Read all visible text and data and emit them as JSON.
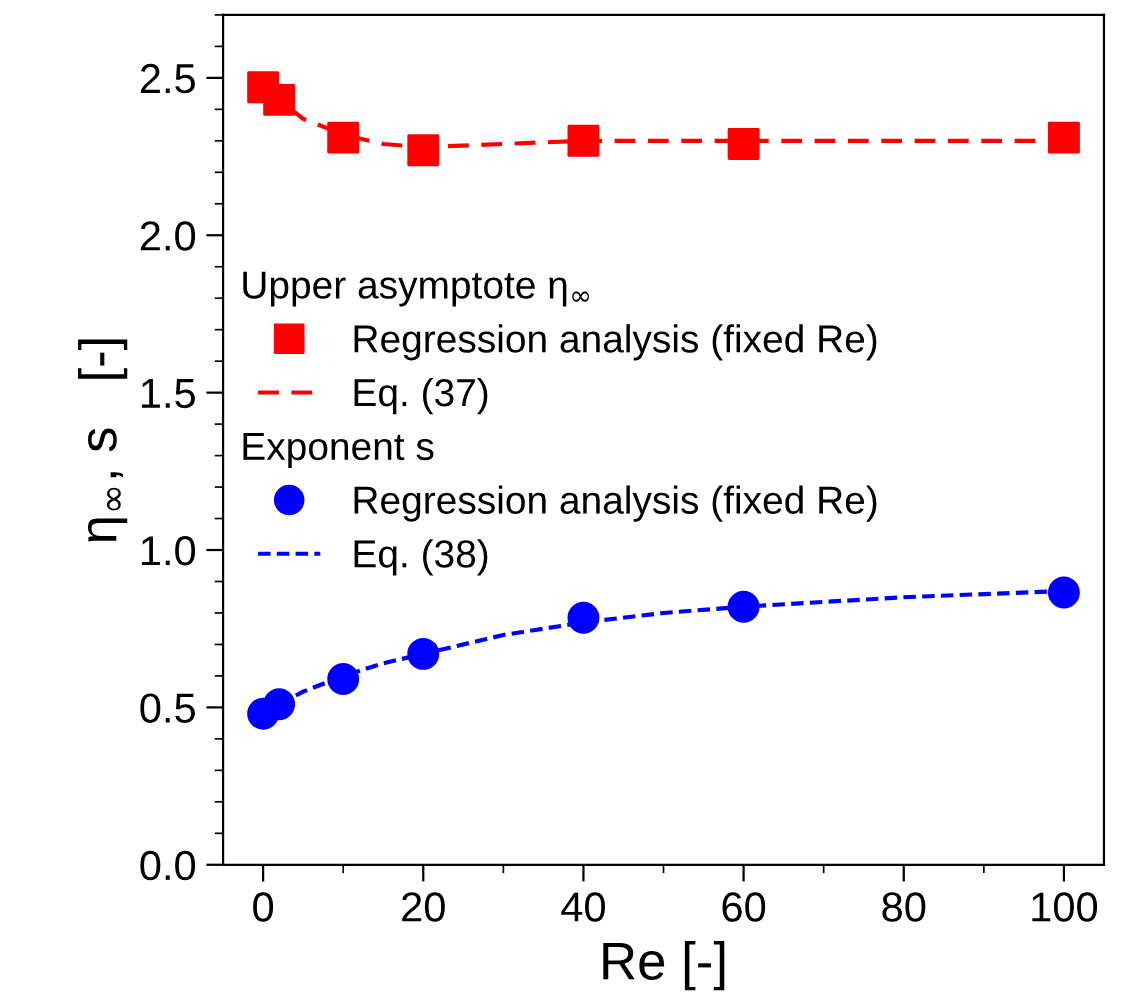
{
  "chart_data": {
    "type": "scatter",
    "xlabel": "Re [-]",
    "ylabel": "η$_{∞}$, s   [-]",
    "annotations": [
      "Upper asymptote η$_{∞}$",
      "Exponent s"
    ],
    "xlim": [
      -5,
      105
    ],
    "xticks": [
      0,
      20,
      40,
      60,
      80,
      100
    ],
    "ylim": [
      0,
      2.7
    ],
    "yticks": [
      {
        "value": 0,
        "label": "0.0"
      },
      0.5,
      {
        "value": 1,
        "label": "1.0"
      },
      1.5,
      {
        "value": 2,
        "label": "2.0"
      },
      2.5
    ],
    "legend": "center left",
    "grid": false,
    "series": [
      {
        "name": "Regression analysis (fixed Re)",
        "marker": "square",
        "color": "#ff0000",
        "x": [
          0,
          2,
          10,
          20,
          40,
          60,
          100
        ],
        "values": [
          2.47,
          2.43,
          2.31,
          2.27,
          2.3,
          2.29,
          2.31
        ]
      },
      {
        "name": "Eq. (37)",
        "type": "line",
        "line_style": "dashed",
        "color": "#ff0000",
        "x": [
          0,
          2,
          5,
          10,
          15,
          20,
          30,
          40,
          60,
          80,
          100
        ],
        "values": [
          2.47,
          2.43,
          2.37,
          2.32,
          2.29,
          2.28,
          2.29,
          2.3,
          2.3,
          2.3,
          2.3
        ]
      },
      {
        "name": "Regression analysis (fixed Re)",
        "marker": "circle",
        "color": "#0000ff",
        "x": [
          0,
          2,
          10,
          20,
          40,
          60,
          100
        ],
        "values": [
          0.48,
          0.51,
          0.59,
          0.67,
          0.785,
          0.82,
          0.865
        ]
      },
      {
        "name": "Eq. (38)",
        "type": "line",
        "line_style": "dotted",
        "color": "#0000ff",
        "x": [
          0,
          2,
          5,
          10,
          15,
          20,
          30,
          40,
          50,
          60,
          80,
          100
        ],
        "values": [
          0.48,
          0.51,
          0.55,
          0.6,
          0.64,
          0.67,
          0.73,
          0.77,
          0.8,
          0.82,
          0.85,
          0.87
        ]
      }
    ]
  }
}
